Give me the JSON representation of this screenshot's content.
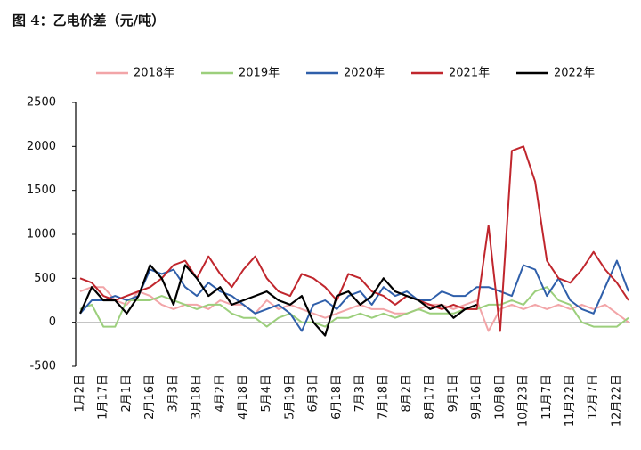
{
  "chart_data": {
    "type": "line",
    "title": "图 4：乙电价差（元/吨）",
    "categories": [
      "1月2日",
      null,
      "1月17日",
      null,
      "2月1日",
      null,
      "2月16日",
      null,
      "3月3日",
      null,
      "3月18日",
      null,
      "4月2日",
      null,
      "4月18日",
      null,
      "5月4日",
      null,
      "5月19日",
      null,
      "6月3日",
      null,
      "6月18日",
      null,
      "7月3日",
      null,
      "7月18日",
      null,
      "8月2日",
      null,
      "8月17日",
      null,
      "9月1日",
      null,
      "9月16日",
      null,
      "10月8日",
      null,
      "10月23日",
      null,
      "11月7日",
      null,
      "11月22日",
      null,
      "12月7日",
      null,
      "12月22日",
      null
    ],
    "series": [
      {
        "name": "2018年",
        "color": "#f2a5a8",
        "values": [
          350,
          400,
          400,
          250,
          200,
          350,
          300,
          200,
          150,
          200,
          200,
          150,
          250,
          200,
          200,
          100,
          250,
          150,
          200,
          150,
          100,
          50,
          100,
          150,
          200,
          150,
          150,
          100,
          100,
          150,
          200,
          200,
          150,
          200,
          250,
          -100,
          150,
          200,
          150,
          200,
          150,
          200,
          150,
          200,
          150,
          200,
          100,
          0
        ]
      },
      {
        "name": "2019年",
        "color": "#9ccf7c",
        "values": [
          150,
          200,
          -50,
          -50,
          250,
          250,
          250,
          300,
          250,
          200,
          150,
          200,
          200,
          100,
          50,
          50,
          -50,
          50,
          100,
          0,
          0,
          -50,
          50,
          50,
          100,
          50,
          100,
          50,
          100,
          150,
          100,
          100,
          100,
          150,
          150,
          200,
          200,
          250,
          200,
          350,
          400,
          250,
          200,
          0,
          -50,
          -50,
          -50,
          50
        ]
      },
      {
        "name": "2020年",
        "color": "#2f5faa",
        "values": [
          100,
          250,
          250,
          300,
          250,
          300,
          600,
          550,
          600,
          400,
          300,
          450,
          350,
          300,
          200,
          100,
          150,
          200,
          100,
          -100,
          200,
          250,
          150,
          300,
          350,
          200,
          400,
          300,
          350,
          250,
          250,
          350,
          300,
          300,
          400,
          400,
          350,
          300,
          650,
          600,
          300,
          500,
          250,
          150,
          100,
          400,
          700,
          350
        ]
      },
      {
        "name": "2021年",
        "color": "#c0262d",
        "values": [
          500,
          450,
          300,
          250,
          300,
          350,
          400,
          500,
          650,
          700,
          500,
          750,
          550,
          400,
          600,
          750,
          500,
          350,
          300,
          550,
          500,
          400,
          250,
          550,
          500,
          350,
          300,
          200,
          300,
          250,
          200,
          150,
          200,
          150,
          150,
          1100,
          -100,
          1950,
          2000,
          1600,
          700,
          500,
          450,
          600,
          800,
          600,
          450,
          250
        ]
      },
      {
        "name": "2022年",
        "color": "#000000",
        "values": [
          100,
          400,
          250,
          250,
          100,
          300,
          650,
          500,
          200,
          650,
          500,
          300,
          400,
          200,
          250,
          300,
          350,
          250,
          200,
          300,
          0,
          -150,
          300,
          350,
          200,
          300,
          500,
          350,
          300,
          250,
          150,
          200,
          50,
          150,
          200,
          null,
          null,
          null,
          null,
          null,
          null,
          null,
          null,
          null,
          null,
          null,
          null,
          null
        ]
      }
    ],
    "ylim": [
      -500,
      2500
    ],
    "yticks": [
      -500,
      0,
      500,
      1000,
      1500,
      2000,
      2500
    ],
    "grid": false
  }
}
